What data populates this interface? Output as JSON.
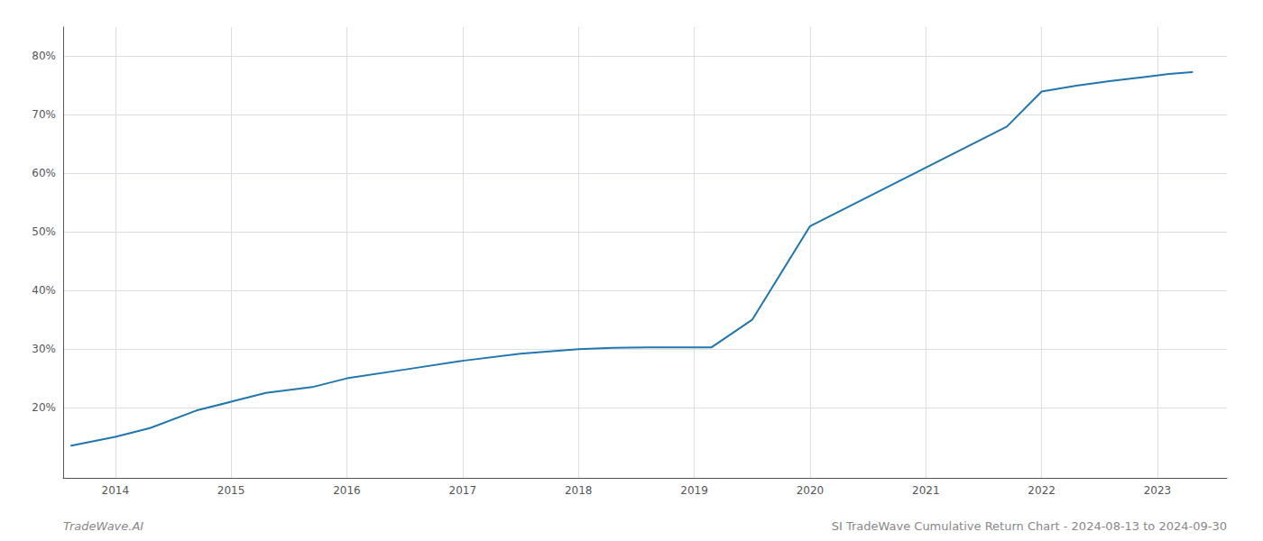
{
  "chart_data": {
    "type": "line",
    "x": [
      2013.62,
      2014.0,
      2014.3,
      2014.7,
      2015.0,
      2015.3,
      2015.7,
      2016.0,
      2016.5,
      2017.0,
      2017.5,
      2018.0,
      2018.3,
      2018.6,
      2019.0,
      2019.08,
      2019.15,
      2019.5,
      2020.0,
      2020.4,
      2020.8,
      2021.0,
      2021.3,
      2021.7,
      2022.0,
      2022.3,
      2022.6,
      2022.9,
      2023.1,
      2023.3
    ],
    "values": [
      13.5,
      15.0,
      16.5,
      19.5,
      21.0,
      22.5,
      23.5,
      25.0,
      26.5,
      28.0,
      29.2,
      30.0,
      30.2,
      30.3,
      30.3,
      30.3,
      30.3,
      35.0,
      51.0,
      55.0,
      59.0,
      61.0,
      64.0,
      68.0,
      74.0,
      75.0,
      75.8,
      76.5,
      77.0,
      77.3
    ],
    "color": "#2176ae",
    "xlim": [
      2013.55,
      2023.6
    ],
    "xticks": [
      2014,
      2015,
      2016,
      2017,
      2018,
      2019,
      2020,
      2021,
      2022,
      2023
    ],
    "ylim": [
      8,
      85
    ],
    "yticks": [
      {
        "value": 20,
        "label": "20%"
      },
      {
        "value": 30,
        "label": "30%"
      },
      {
        "value": 40,
        "label": "40%"
      },
      {
        "value": 50,
        "label": "50%"
      },
      {
        "value": 60,
        "label": "60%"
      },
      {
        "value": 70,
        "label": "70%"
      },
      {
        "value": 80,
        "label": "80%"
      }
    ],
    "grid": true,
    "annotations": [
      "TradeWave.AI",
      "SI TradeWave Cumulative Return Chart - 2024-08-13 to 2024-09-30"
    ]
  }
}
